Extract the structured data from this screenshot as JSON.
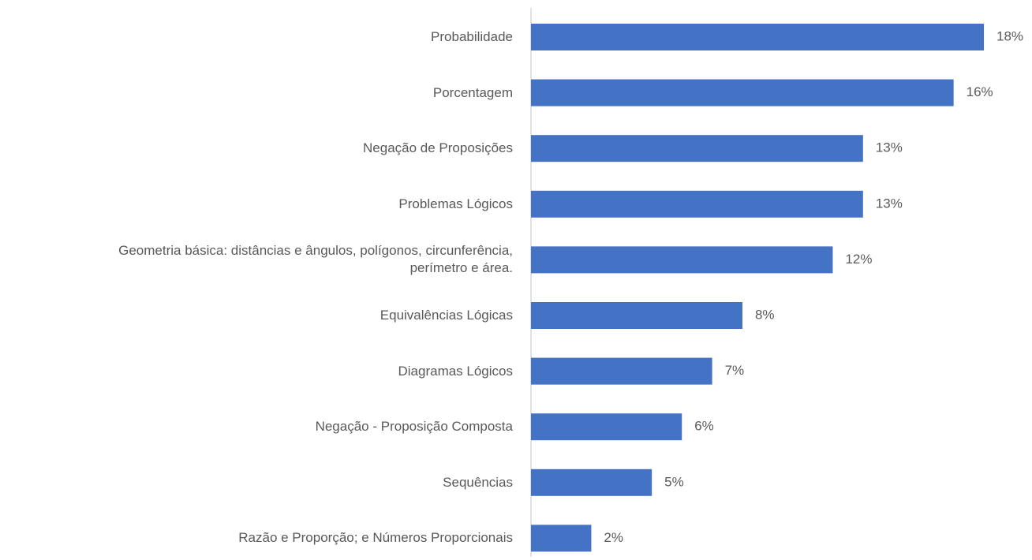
{
  "chart_data": {
    "type": "hbar",
    "categories": [
      "Probabilidade",
      "Porcentagem",
      "Negação de Proposições",
      "Problemas Lógicos",
      "Geometria básica: distâncias e ângulos, polígonos, circunferência,\nperímetro e área.",
      "Equivalências Lógicas",
      "Diagramas Lógicos",
      "Negação - Proposição Composta",
      "Sequências",
      "Razão e Proporção; e Números Proporcionais"
    ],
    "values": [
      17.65,
      16.47,
      12.94,
      12.94,
      11.76,
      8.24,
      7.06,
      5.88,
      4.71,
      2.35
    ],
    "value_labels": [
      "18%",
      "16%",
      "13%",
      "13%",
      "12%",
      "8%",
      "7%",
      "6%",
      "5%",
      "2%"
    ],
    "color": "#4472c4",
    "xlim": [
      0,
      18
    ]
  }
}
